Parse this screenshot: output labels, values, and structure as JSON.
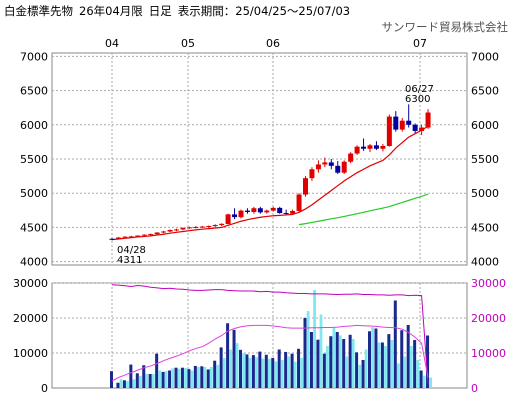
{
  "header": {
    "product": "白金標準先物",
    "contract": "26年04月限",
    "period_type": "日足",
    "range_label": "表示期間：",
    "range_value": "25/04/25～25/07/03",
    "company": "サンワード貿易株式会社"
  },
  "chart_data": [
    {
      "type": "candlestick",
      "months": [
        "04",
        "05",
        "06",
        "07"
      ],
      "y_ticks": [
        7000,
        6500,
        6000,
        5500,
        5000,
        4500,
        4000
      ],
      "ylim": [
        3950,
        7050
      ],
      "grid": true,
      "annotations": [
        {
          "date_label": "04/28",
          "value_label": "4311",
          "kind": "low"
        },
        {
          "date_label": "06/27",
          "value_label": "6300",
          "kind": "high"
        }
      ],
      "candles": [
        [
          4333,
          4345,
          4311,
          4330
        ],
        [
          4335,
          4360,
          4325,
          4352
        ],
        [
          4350,
          4372,
          4340,
          4364
        ],
        [
          4362,
          4378,
          4350,
          4368
        ],
        [
          4368,
          4385,
          4358,
          4380
        ],
        [
          4380,
          4400,
          4370,
          4394
        ],
        [
          4392,
          4410,
          4380,
          4402
        ],
        [
          4400,
          4430,
          4392,
          4425
        ],
        [
          4425,
          4450,
          4412,
          4440
        ],
        [
          4440,
          4470,
          4430,
          4462
        ],
        [
          4460,
          4482,
          4445,
          4470
        ],
        [
          4470,
          4500,
          4460,
          4492
        ],
        [
          4490,
          4510,
          4478,
          4500
        ],
        [
          4500,
          4520,
          4485,
          4505
        ],
        [
          4505,
          4522,
          4490,
          4512
        ],
        [
          4510,
          4528,
          4495,
          4520
        ],
        [
          4520,
          4545,
          4500,
          4535
        ],
        [
          4535,
          4560,
          4520,
          4552
        ],
        [
          4550,
          4700,
          4545,
          4690
        ],
        [
          4690,
          4780,
          4620,
          4650
        ],
        [
          4650,
          4760,
          4630,
          4745
        ],
        [
          4745,
          4780,
          4700,
          4725
        ],
        [
          4725,
          4800,
          4700,
          4780
        ],
        [
          4780,
          4800,
          4700,
          4720
        ],
        [
          4720,
          4760,
          4700,
          4745
        ],
        [
          4745,
          4800,
          4730,
          4785
        ],
        [
          4785,
          4800,
          4700,
          4710
        ],
        [
          4710,
          4760,
          4690,
          4700
        ],
        [
          4700,
          4760,
          4690,
          4740
        ],
        [
          4740,
          5000,
          4730,
          4980
        ],
        [
          4980,
          5250,
          4950,
          5220
        ],
        [
          5220,
          5380,
          5180,
          5350
        ],
        [
          5350,
          5480,
          5300,
          5420
        ],
        [
          5420,
          5520,
          5380,
          5450
        ],
        [
          5450,
          5500,
          5350,
          5400
        ],
        [
          5400,
          5470,
          5280,
          5300
        ],
        [
          5300,
          5480,
          5280,
          5460
        ],
        [
          5460,
          5600,
          5440,
          5580
        ],
        [
          5580,
          5700,
          5560,
          5680
        ],
        [
          5680,
          5800,
          5620,
          5650
        ],
        [
          5650,
          5720,
          5600,
          5700
        ],
        [
          5700,
          5760,
          5630,
          5650
        ],
        [
          5650,
          5720,
          5610,
          5690
        ],
        [
          5690,
          6150,
          5680,
          6120
        ],
        [
          6120,
          6200,
          5900,
          5930
        ],
        [
          5930,
          6100,
          5900,
          6060
        ],
        [
          6060,
          6300,
          5960,
          6000
        ],
        [
          6000,
          6020,
          5880,
          5910
        ],
        [
          5910,
          6000,
          5850,
          5960
        ],
        [
          5960,
          6230,
          5940,
          6180
        ]
      ],
      "ma1": [
        4320,
        4330,
        4340,
        4350,
        4360,
        4368,
        4376,
        4388,
        4400,
        4415,
        4428,
        4440,
        4452,
        4464,
        4474,
        4482,
        4490,
        4500,
        4530,
        4560,
        4590,
        4612,
        4632,
        4648,
        4660,
        4670,
        4676,
        4682,
        4690,
        4720,
        4770,
        4830,
        4900,
        4970,
        5040,
        5110,
        5180,
        5240,
        5300,
        5350,
        5400,
        5440,
        5480,
        5560,
        5660,
        5740,
        5820,
        5870,
        5920,
        5980
      ],
      "ma2": [
        [
          29,
          4540
        ],
        [
          30,
          4555
        ],
        [
          31,
          4572
        ],
        [
          32,
          4590
        ],
        [
          33,
          4608
        ],
        [
          34,
          4625
        ],
        [
          35,
          4642
        ],
        [
          36,
          4660
        ],
        [
          37,
          4680
        ],
        [
          38,
          4700
        ],
        [
          39,
          4720
        ],
        [
          40,
          4742
        ],
        [
          41,
          4762
        ],
        [
          42,
          4782
        ],
        [
          43,
          4805
        ],
        [
          44,
          4835
        ],
        [
          45,
          4865
        ],
        [
          46,
          4895
        ],
        [
          47,
          4925
        ],
        [
          48,
          4955
        ],
        [
          49,
          4985
        ]
      ],
      "ma2_offset": 445
    },
    {
      "type": "bar+line",
      "y_ticks_left": [
        30000,
        20000,
        10000,
        0
      ],
      "y_ticks_right": [
        30000,
        20000,
        10000,
        0
      ],
      "ylim": [
        0,
        30000
      ],
      "series": [
        {
          "values": [
            4800,
            1500,
            2200,
            6700,
            4200,
            6500,
            4000,
            9800,
            4600,
            5000,
            5800,
            5800,
            5400,
            6300,
            6200,
            5300,
            7800,
            11600,
            18500,
            16600,
            10900,
            9600,
            9400,
            10400,
            9500,
            8600,
            11000,
            10300,
            9800,
            11200,
            20000,
            16000,
            13800,
            9800,
            14800,
            16000,
            14000,
            15200,
            10200,
            8000,
            16200,
            17000,
            13000,
            15400,
            25000,
            16500,
            18000,
            13700,
            5000,
            15000
          ]
        },
        {
          "values": [
            0,
            2500,
            2000,
            2500,
            3400,
            4000,
            4000,
            5000,
            4800,
            5600,
            5500,
            5700,
            5000,
            6000,
            6000,
            6000,
            6600,
            8500,
            11000,
            12800,
            10000,
            8600,
            8800,
            8400,
            8300,
            7600,
            8000,
            9000,
            7500,
            8600,
            22000,
            28000,
            21000,
            12000,
            17200,
            15000,
            9000,
            14000,
            6600,
            11000,
            17400,
            13000,
            12000,
            13700,
            7000,
            9000,
            12000,
            8000,
            3500,
            3000
          ]
        }
      ],
      "line_purple": [
        29500,
        29400,
        29200,
        29000,
        29300,
        29100,
        28800,
        28600,
        28400,
        28500,
        28300,
        28200,
        28000,
        27900,
        27900,
        28000,
        28100,
        28100,
        27900,
        27800,
        27700,
        27700,
        27700,
        27500,
        27600,
        27400,
        27400,
        27200,
        27100,
        27000,
        27000,
        26900,
        26900,
        26900,
        26800,
        26700,
        26800,
        26800,
        26900,
        26700,
        26700,
        26600,
        26600,
        26500,
        26600,
        26600,
        26400,
        26500,
        26400,
        1000
      ],
      "line_magenta": [
        2000,
        3000,
        3700,
        4400,
        5100,
        5800,
        6300,
        7000,
        7800,
        8500,
        9100,
        9800,
        10600,
        11300,
        11800,
        12800,
        14000,
        15000,
        16300,
        17000,
        17500,
        17800,
        17900,
        17900,
        17900,
        17700,
        17500,
        17200,
        17100,
        17100,
        17100,
        17200,
        17200,
        17300,
        17300,
        17400,
        17600,
        17700,
        17900,
        17800,
        17700,
        17600,
        17400,
        17300,
        17200,
        16800,
        15800,
        14500,
        12800,
        3000
      ]
    }
  ]
}
